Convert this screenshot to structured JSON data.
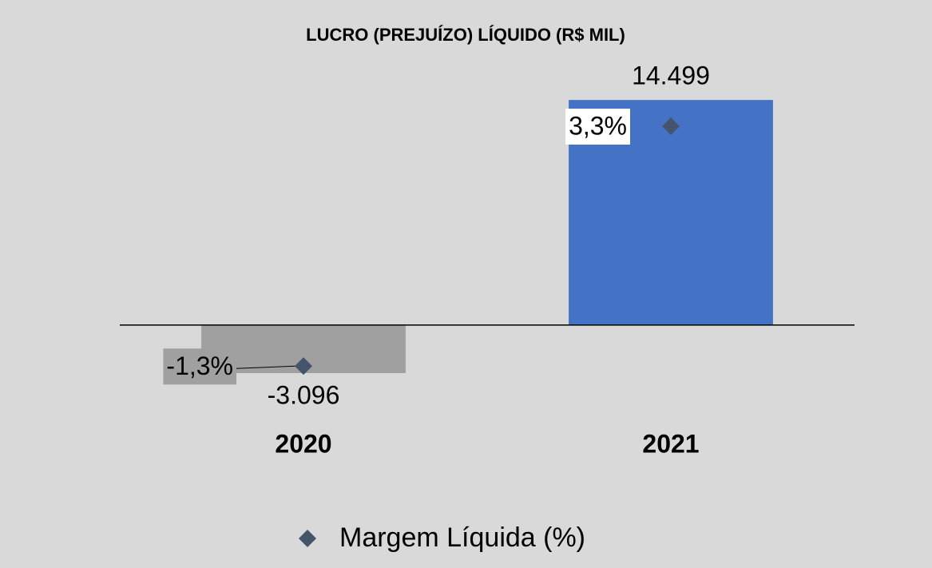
{
  "chart_data": {
    "type": "bar",
    "title": "LUCRO (PREJUÍZO) LÍQUIDO (R$ MIL)",
    "categories": [
      "2020",
      "2021"
    ],
    "values": [
      -3096,
      14499
    ],
    "value_labels": [
      "-3.096",
      "14.499"
    ],
    "colors": [
      "#a0a0a0",
      "#4472c4"
    ],
    "ylim": [
      -5000,
      16000
    ],
    "y2lim": [
      -2,
      4.25
    ],
    "series": [
      {
        "name": "Margem Líquida (%)",
        "color": "#44546a",
        "axis": "y2",
        "values": [
          -1.3,
          3.3
        ],
        "value_labels": [
          "-1,3%",
          "3,3%"
        ]
      }
    ],
    "legend": "bottom"
  }
}
